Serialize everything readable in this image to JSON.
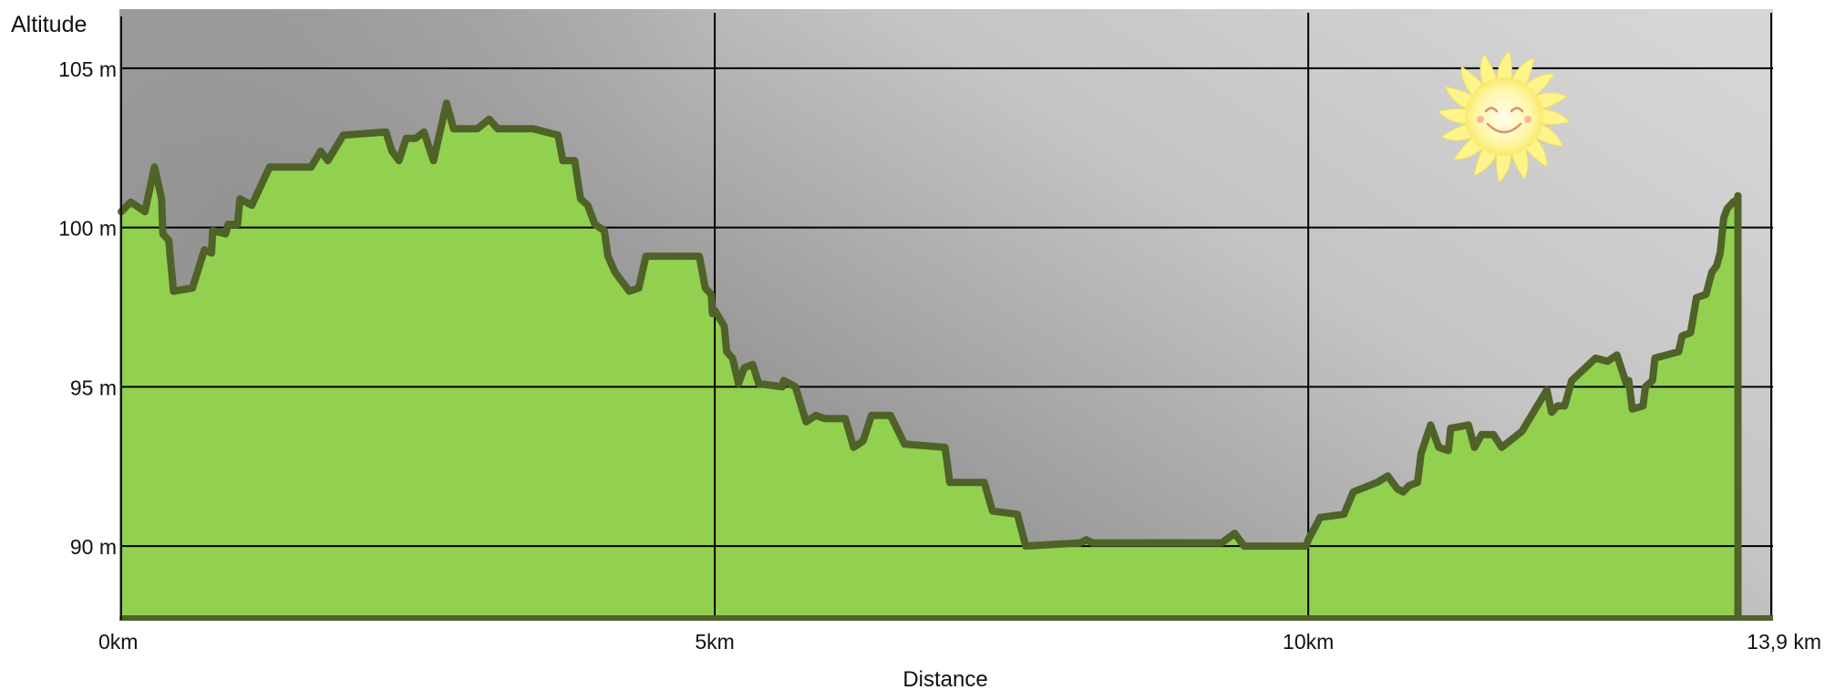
{
  "chart_data": {
    "type": "area",
    "title": "",
    "xlabel": "Distance",
    "ylabel": "Altitude",
    "unit_x": "km",
    "unit_y": "m",
    "xlim": [
      0,
      13.9
    ],
    "ylim": [
      87.8,
      106.8
    ],
    "x_ticks": [
      {
        "value": 0,
        "label": "0km"
      },
      {
        "value": 5,
        "label": "5km"
      },
      {
        "value": 10,
        "label": "10km"
      },
      {
        "value": 13.9,
        "label": "13,9 km"
      }
    ],
    "y_ticks": [
      {
        "value": 90,
        "label": "90 m"
      },
      {
        "value": 95,
        "label": "95 m"
      },
      {
        "value": 100,
        "label": "100 m"
      },
      {
        "value": 105,
        "label": "105 m"
      }
    ],
    "grid": true,
    "colors": {
      "fill": "#92d050",
      "line": "#4f6228",
      "background_light": "#d6d6d6",
      "background_dark": "#8a8a8a",
      "grid": "#000000"
    },
    "decoration": "sun-icon",
    "series": [
      {
        "values": [
          [
            0.0,
            100.5
          ],
          [
            0.08,
            100.8
          ],
          [
            0.2,
            100.5
          ],
          [
            0.28,
            101.9
          ],
          [
            0.34,
            100.9
          ],
          [
            0.35,
            99.8
          ],
          [
            0.4,
            99.6
          ],
          [
            0.44,
            98.0
          ],
          [
            0.6,
            98.1
          ],
          [
            0.7,
            99.3
          ],
          [
            0.76,
            99.2
          ],
          [
            0.77,
            99.9
          ],
          [
            0.88,
            99.8
          ],
          [
            0.9,
            100.1
          ],
          [
            0.98,
            100.1
          ],
          [
            1.0,
            100.9
          ],
          [
            1.1,
            100.7
          ],
          [
            1.25,
            101.9
          ],
          [
            1.6,
            101.9
          ],
          [
            1.68,
            102.4
          ],
          [
            1.74,
            102.1
          ],
          [
            1.87,
            102.9
          ],
          [
            2.23,
            103.0
          ],
          [
            2.28,
            102.4
          ],
          [
            2.34,
            102.1
          ],
          [
            2.4,
            102.8
          ],
          [
            2.48,
            102.8
          ],
          [
            2.55,
            103.0
          ],
          [
            2.63,
            102.1
          ],
          [
            2.74,
            103.9
          ],
          [
            2.8,
            103.1
          ],
          [
            3.0,
            103.1
          ],
          [
            3.1,
            103.4
          ],
          [
            3.17,
            103.1
          ],
          [
            3.47,
            103.1
          ],
          [
            3.68,
            102.9
          ],
          [
            3.72,
            102.1
          ],
          [
            3.82,
            102.1
          ],
          [
            3.87,
            100.9
          ],
          [
            3.93,
            100.7
          ],
          [
            3.99,
            100.1
          ],
          [
            4.07,
            99.9
          ],
          [
            4.1,
            99.1
          ],
          [
            4.16,
            98.6
          ],
          [
            4.28,
            98.0
          ],
          [
            4.36,
            98.1
          ],
          [
            4.42,
            99.1
          ],
          [
            4.87,
            99.1
          ],
          [
            4.92,
            98.1
          ],
          [
            4.97,
            97.9
          ],
          [
            4.98,
            97.3
          ],
          [
            5.0,
            97.4
          ],
          [
            5.08,
            96.9
          ],
          [
            5.1,
            96.1
          ],
          [
            5.15,
            95.9
          ],
          [
            5.2,
            95.1
          ],
          [
            5.25,
            95.6
          ],
          [
            5.32,
            95.7
          ],
          [
            5.37,
            95.1
          ],
          [
            5.57,
            95.0
          ],
          [
            5.58,
            95.2
          ],
          [
            5.68,
            95.0
          ],
          [
            5.77,
            93.9
          ],
          [
            5.85,
            94.1
          ],
          [
            5.93,
            94.0
          ],
          [
            6.1,
            94.0
          ],
          [
            6.17,
            93.1
          ],
          [
            6.25,
            93.3
          ],
          [
            6.32,
            94.1
          ],
          [
            6.48,
            94.1
          ],
          [
            6.6,
            93.2
          ],
          [
            6.94,
            93.1
          ],
          [
            6.98,
            92.0
          ],
          [
            7.27,
            92.0
          ],
          [
            7.34,
            91.1
          ],
          [
            7.55,
            91.0
          ],
          [
            7.62,
            90.0
          ],
          [
            8.08,
            90.1
          ],
          [
            8.13,
            90.2
          ],
          [
            8.18,
            90.1
          ],
          [
            8.4,
            90.1
          ],
          [
            9.27,
            90.1
          ],
          [
            9.38,
            90.4
          ],
          [
            9.46,
            90.0
          ],
          [
            9.98,
            90.0
          ],
          [
            10.0,
            90.2
          ],
          [
            10.1,
            90.9
          ],
          [
            10.3,
            91.0
          ],
          [
            10.38,
            91.7
          ],
          [
            10.58,
            92.0
          ],
          [
            10.67,
            92.2
          ],
          [
            10.75,
            91.8
          ],
          [
            10.8,
            91.7
          ],
          [
            10.85,
            91.9
          ],
          [
            10.92,
            92.0
          ],
          [
            10.95,
            92.9
          ],
          [
            11.03,
            93.8
          ],
          [
            11.1,
            93.1
          ],
          [
            11.18,
            93.0
          ],
          [
            11.2,
            93.7
          ],
          [
            11.35,
            93.8
          ],
          [
            11.4,
            93.1
          ],
          [
            11.46,
            93.5
          ],
          [
            11.56,
            93.5
          ],
          [
            11.63,
            93.1
          ],
          [
            11.8,
            93.6
          ],
          [
            11.88,
            94.1
          ],
          [
            12.01,
            94.9
          ],
          [
            12.05,
            94.2
          ],
          [
            12.1,
            94.4
          ],
          [
            12.16,
            94.4
          ],
          [
            12.22,
            95.2
          ],
          [
            12.42,
            95.9
          ],
          [
            12.52,
            95.8
          ],
          [
            12.6,
            96.0
          ],
          [
            12.68,
            95.1
          ],
          [
            12.7,
            95.2
          ],
          [
            12.73,
            94.3
          ],
          [
            12.82,
            94.4
          ],
          [
            12.84,
            95.0
          ],
          [
            12.9,
            95.2
          ],
          [
            12.92,
            95.9
          ],
          [
            13.12,
            96.1
          ],
          [
            13.15,
            96.6
          ],
          [
            13.22,
            96.7
          ],
          [
            13.27,
            97.8
          ],
          [
            13.35,
            97.9
          ],
          [
            13.4,
            98.6
          ],
          [
            13.44,
            98.8
          ],
          [
            13.47,
            99.2
          ],
          [
            13.5,
            100.3
          ],
          [
            13.53,
            100.6
          ],
          [
            13.58,
            100.8
          ],
          [
            13.62,
            100.9
          ],
          [
            13.62,
            101.0
          ]
        ]
      }
    ]
  }
}
